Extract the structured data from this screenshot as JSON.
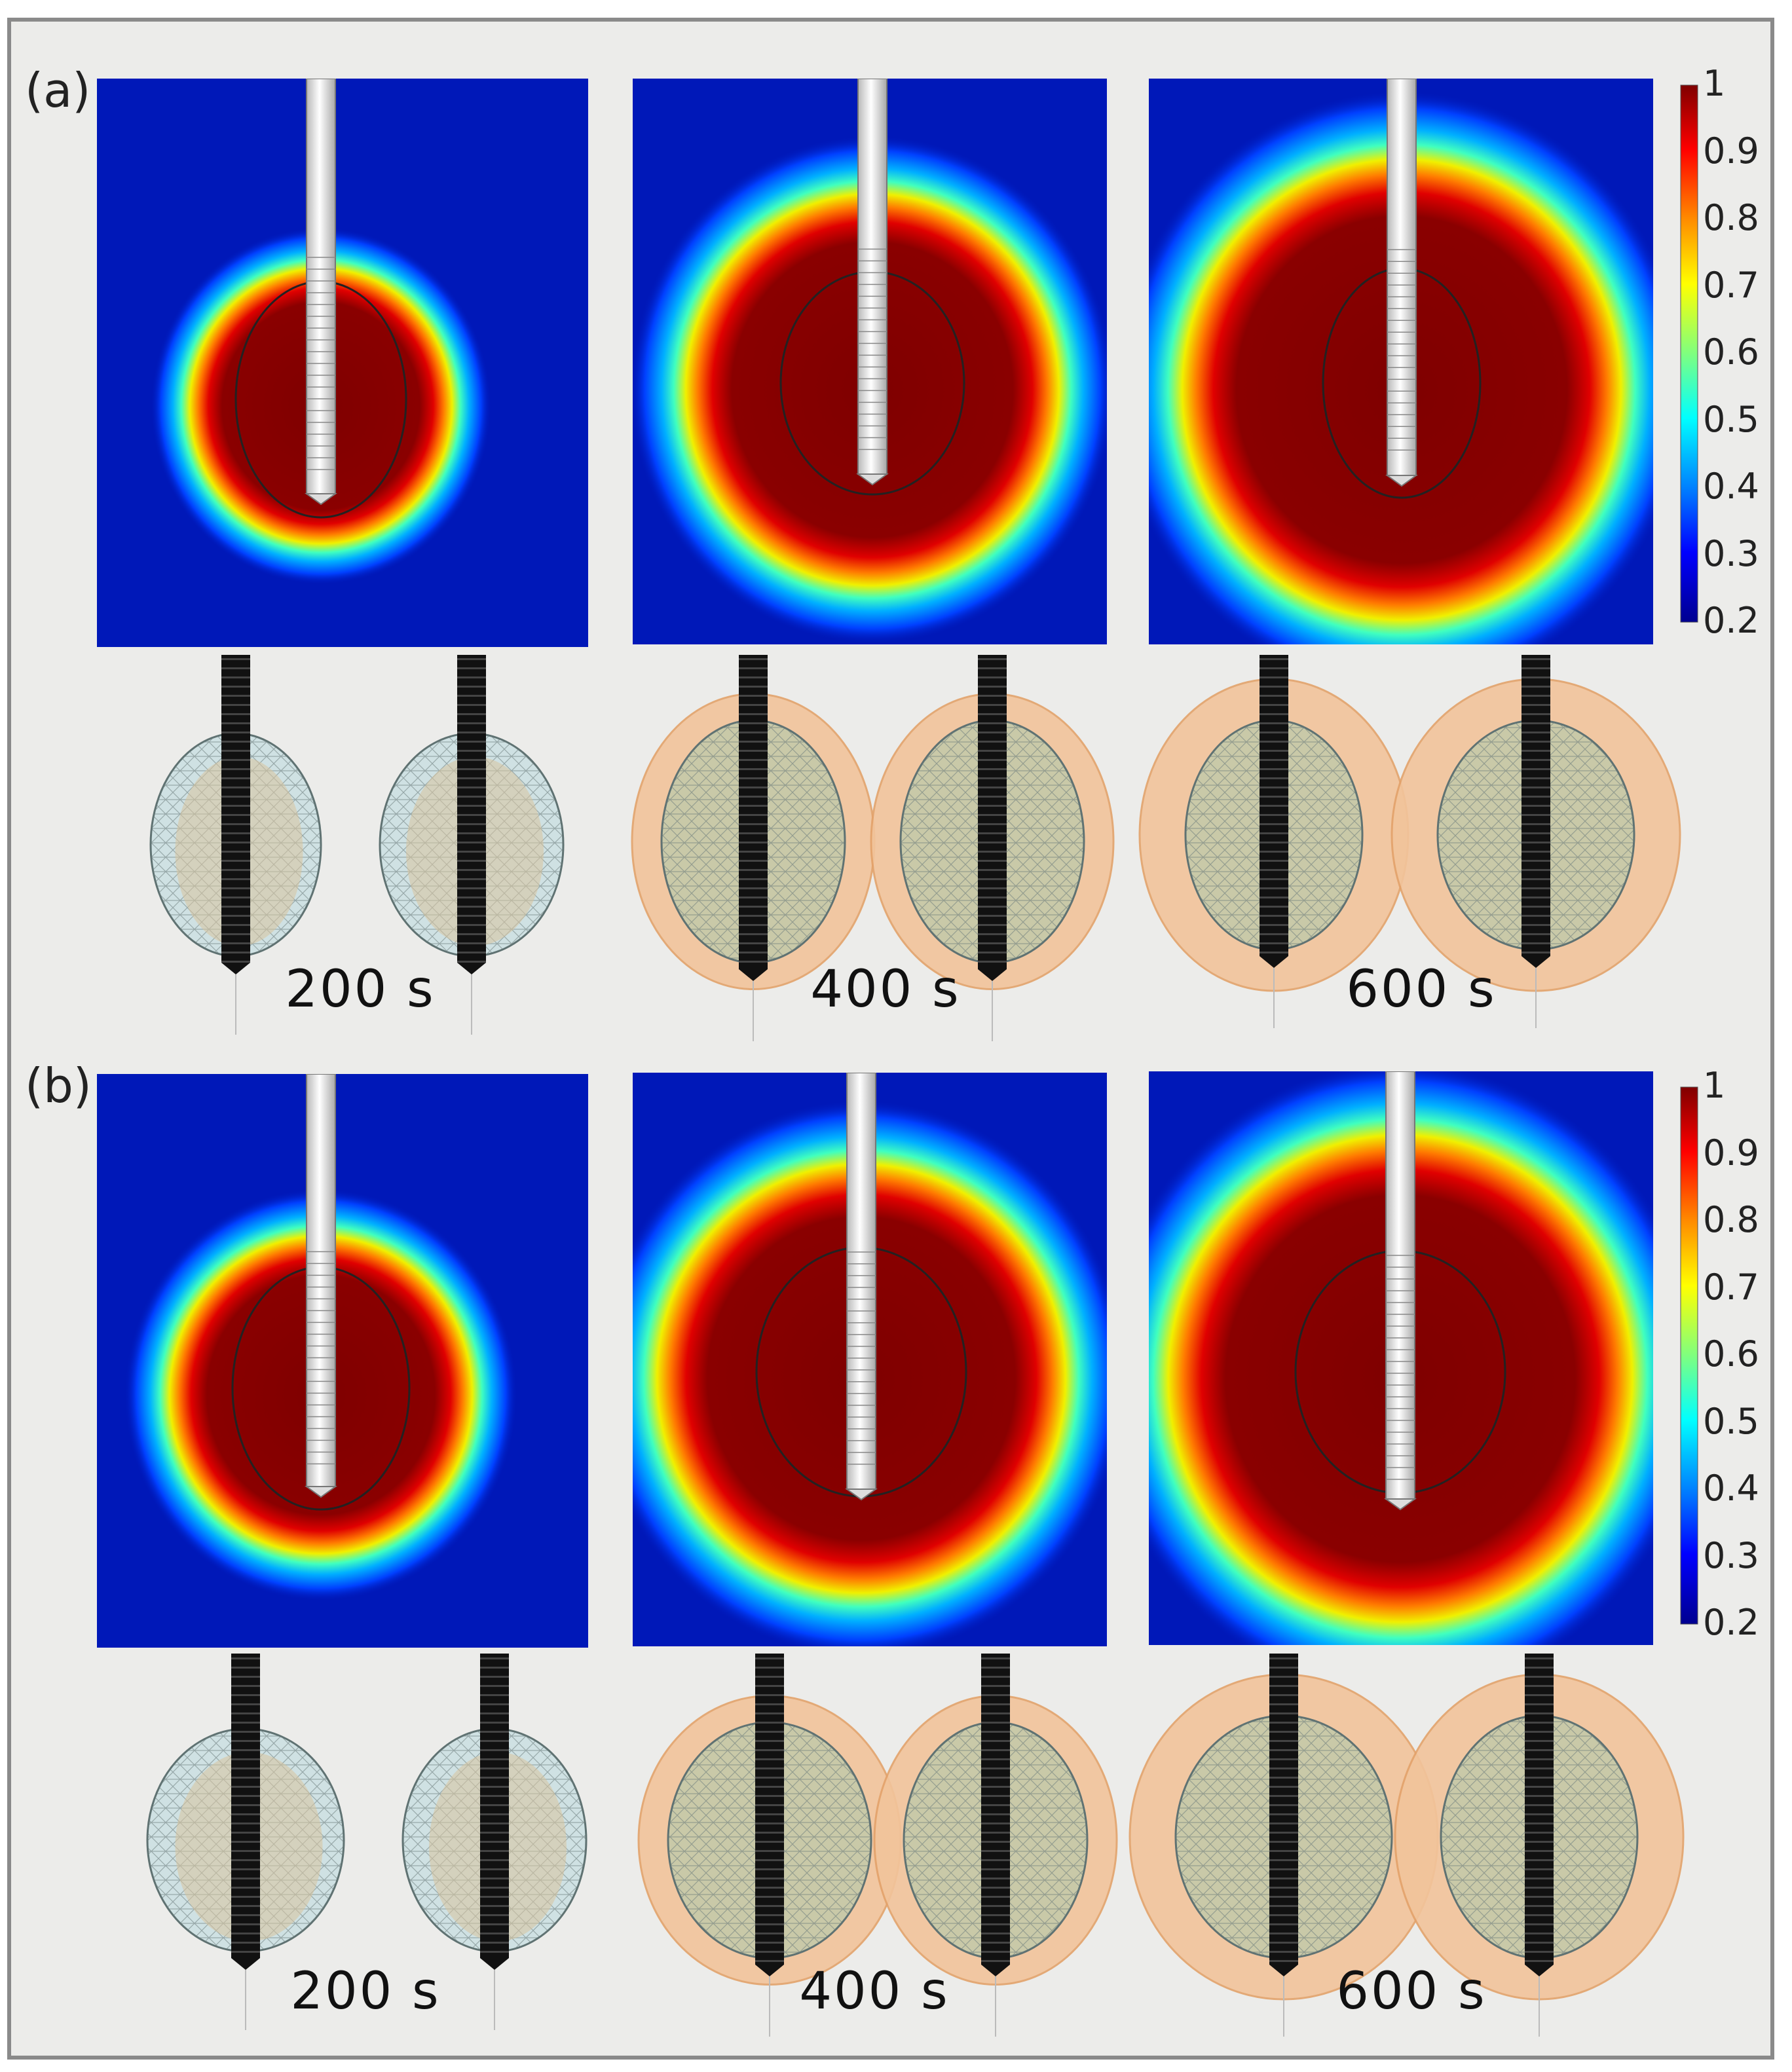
{
  "panels": [
    {
      "label": "(a)",
      "times": [
        "200 s",
        "400 s",
        "600 s"
      ]
    },
    {
      "label": "(b)",
      "times": [
        "200 s",
        "400 s",
        "600 s"
      ]
    }
  ],
  "colorbar": {
    "ticks": [
      "1",
      "0.9",
      "0.8",
      "0.7",
      "0.6",
      "0.5",
      "0.4",
      "0.3",
      "0.2"
    ],
    "colors": [
      "#7f0000",
      "#ff0000",
      "#ff8c00",
      "#ffff00",
      "#7fff7f",
      "#00ffff",
      "#0080ff",
      "#0000ff",
      "#00008f"
    ]
  }
}
